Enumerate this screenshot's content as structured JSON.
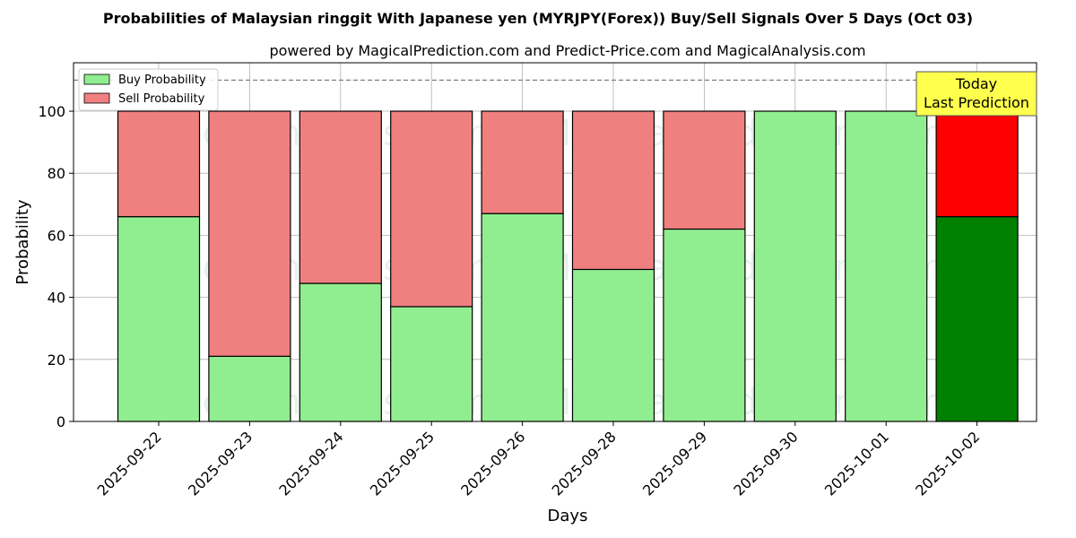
{
  "chart_data": {
    "type": "bar",
    "title": "Probabilities of Malaysian ringgit With Japanese yen (MYRJPY(Forex)) Buy/Sell Signals Over 5 Days (Oct 03)",
    "subtitle": "powered by MagicalPrediction.com and Predict-Price.com and MagicalAnalysis.com",
    "xlabel": "Days",
    "ylabel": "Probability",
    "ylim": [
      0,
      115
    ],
    "yticks": [
      0,
      20,
      40,
      60,
      80,
      100
    ],
    "reference_line": 110,
    "grid": true,
    "stacked": true,
    "legend_position": "top-left",
    "categories": [
      "2025-09-22",
      "2025-09-23",
      "2025-09-24",
      "2025-09-25",
      "2025-09-26",
      "2025-09-28",
      "2025-09-29",
      "2025-09-30",
      "2025-10-01",
      "2025-10-02"
    ],
    "series": [
      {
        "name": "Buy Probability",
        "color": "#90ee90",
        "highlight_color": "#008000",
        "values": [
          66,
          21,
          44.5,
          37,
          67,
          49,
          62,
          100,
          100,
          66
        ]
      },
      {
        "name": "Sell Probability",
        "color": "#f08080",
        "highlight_color": "#ff0000",
        "values": [
          34,
          79,
          55.5,
          63,
          33,
          51,
          38,
          0,
          0,
          34
        ]
      }
    ],
    "highlight_index": 9,
    "annotation": {
      "line1": "Today",
      "line2": "Last Prediction",
      "color": "#ffff4d"
    },
    "watermarks": [
      "MagicalAnalysis.com",
      "MagicalPrediction.com",
      "MagicalAnalysis.com",
      "MagicalPrediction.com",
      "MagicalAnalysis.com",
      "MagicalPrediction.com"
    ]
  }
}
